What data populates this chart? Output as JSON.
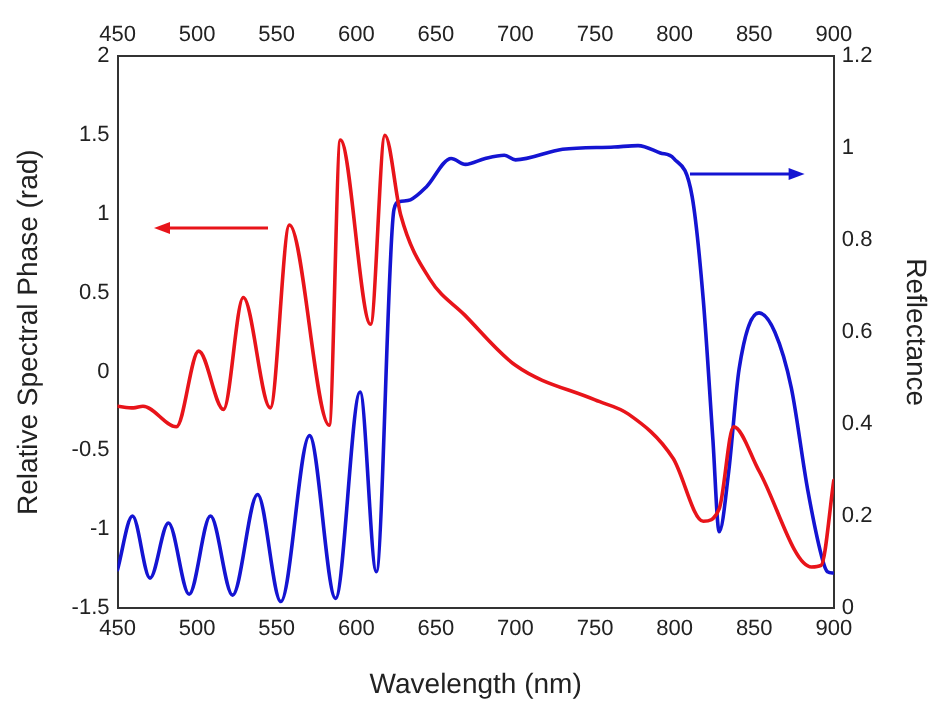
{
  "chart_data": {
    "type": "line",
    "xlabel": "Wavelength (nm)",
    "ylabel": "Relative Spectral Phase (rad)",
    "y2label": "Reflectance",
    "xlim": [
      450,
      900
    ],
    "xticks": [
      450,
      500,
      550,
      600,
      650,
      700,
      750,
      800,
      850,
      900
    ],
    "x2lim": [
      450,
      900
    ],
    "x2ticks": [
      450,
      500,
      550,
      600,
      650,
      700,
      750,
      800,
      850,
      900
    ],
    "ylim": [
      -1.5,
      2
    ],
    "yticks": [
      -1.5,
      -1,
      -0.5,
      0,
      0.5,
      1,
      1.5,
      2
    ],
    "y2lim": [
      0,
      1.2
    ],
    "y2ticks": [
      0,
      0.2,
      0.4,
      0.6,
      0.8,
      1,
      1.2
    ],
    "grid": false,
    "legend": false,
    "marker": "none",
    "line_style": "solid",
    "series": [
      {
        "color": "#e8141a",
        "axis": "y",
        "x": [
          450,
          460,
          466,
          487,
          501,
          516.6,
          529,
          546,
          558,
          583,
          590,
          609,
          618,
          628,
          646,
          668,
          700,
          750,
          771,
          799,
          818,
          828,
          837,
          853,
          886,
          892,
          900
        ],
        "values": [
          -0.22,
          -0.23,
          -0.22,
          -0.35,
          0.13,
          -0.24,
          0.47,
          -0.23,
          0.93,
          -0.34,
          1.47,
          0.3,
          1.5,
          0.99,
          0.59,
          0.36,
          0.04,
          -0.18,
          -0.27,
          -0.55,
          -0.95,
          -0.87,
          -0.35,
          -0.63,
          -1.24,
          -1.23,
          -0.69
        ]
      },
      {
        "color": "#1414d2",
        "axis": "y2",
        "x": [
          450,
          459.4,
          470.4,
          482,
          495,
          508.4,
          522.3,
          538,
          552.6,
          570.6,
          587,
          602.4,
          612.6,
          623.7,
          627,
          634,
          644,
          659.6,
          668.6,
          681,
          693,
          700,
          729.6,
          762,
          777,
          791,
          799.4,
          811,
          818,
          824,
          828,
          834,
          840.5,
          853,
          863,
          873.3,
          883.6,
          893,
          896,
          900
        ],
        "values": [
          0.083,
          0.2,
          0.065,
          0.185,
          0.03,
          0.2,
          0.028,
          0.247,
          0.014,
          0.375,
          0.021,
          0.47,
          0.079,
          0.867,
          0.884,
          0.888,
          0.916,
          0.978,
          0.965,
          0.978,
          0.985,
          0.975,
          0.998,
          1.003,
          1.006,
          0.99,
          0.978,
          0.895,
          0.67,
          0.368,
          0.166,
          0.298,
          0.52,
          0.642,
          0.6,
          0.479,
          0.257,
          0.104,
          0.079,
          0.076
        ]
      }
    ]
  }
}
